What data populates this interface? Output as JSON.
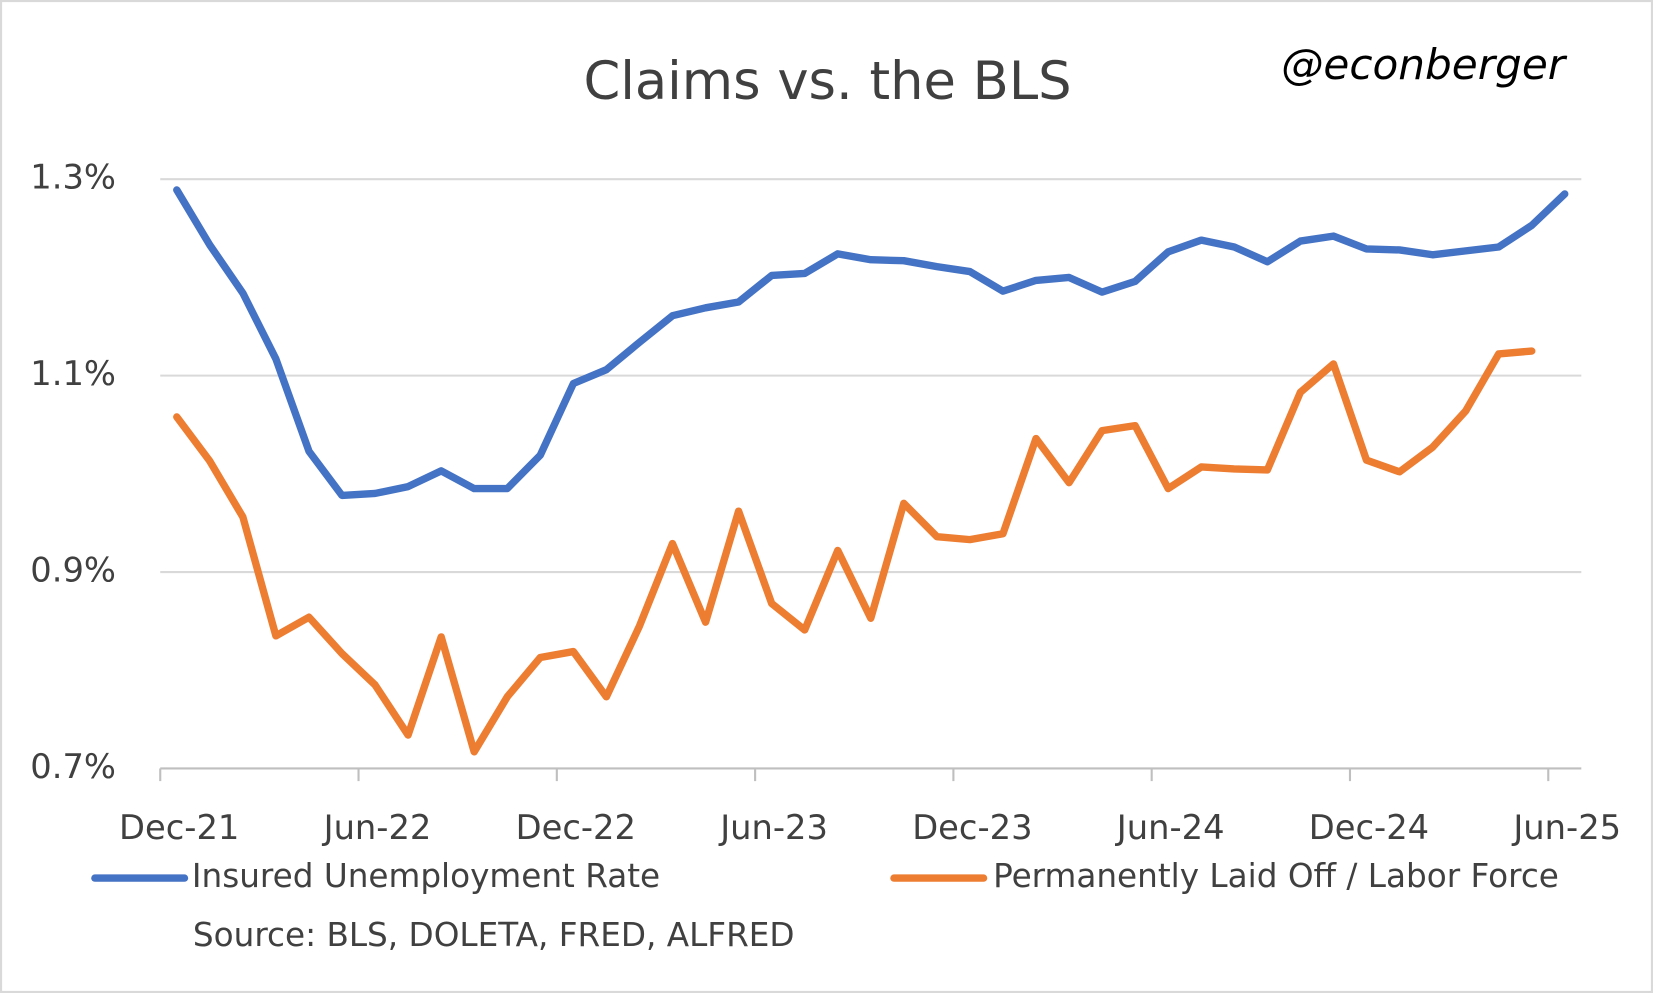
{
  "chart_data": {
    "type": "line",
    "title": "Claims vs. the BLS",
    "handle": "@econberger",
    "source": "Source: BLS, DOLETA, FRED, ALFRED",
    "categories": [
      "Dec-21",
      null,
      null,
      null,
      null,
      null,
      "Jun-22",
      null,
      null,
      null,
      null,
      null,
      "Dec-22",
      null,
      null,
      null,
      null,
      null,
      "Jun-23",
      null,
      null,
      null,
      null,
      null,
      "Dec-23",
      null,
      null,
      null,
      null,
      null,
      "Jun-24",
      null,
      null,
      null,
      null,
      null,
      "Dec-24",
      null,
      null,
      null,
      null,
      null,
      "Jun-25"
    ],
    "series": [
      {
        "name": "Insured Unemployment Rate",
        "color": "#4472c4",
        "values": [
          1.289,
          1.233,
          1.184,
          1.117,
          1.023,
          0.978,
          0.98,
          0.987,
          1.003,
          0.985,
          0.985,
          1.019,
          1.092,
          1.106,
          1.134,
          1.161,
          1.169,
          1.175,
          1.202,
          1.204,
          1.224,
          1.218,
          1.217,
          1.211,
          1.206,
          1.186,
          1.197,
          1.2,
          1.185,
          1.196,
          1.226,
          1.238,
          1.231,
          1.216,
          1.237,
          1.242,
          1.229,
          1.228,
          1.223,
          1.227,
          1.231,
          1.253,
          1.285
        ]
      },
      {
        "name": "Permanently Laid Off / Labor Force",
        "color": "#ed7d31",
        "values": [
          1.058,
          1.013,
          0.956,
          0.835,
          0.854,
          0.817,
          0.785,
          0.734,
          0.834,
          0.717,
          0.773,
          0.813,
          0.819,
          0.773,
          0.845,
          0.929,
          0.849,
          0.962,
          0.868,
          0.841,
          0.922,
          0.853,
          0.97,
          0.936,
          0.933,
          0.939,
          1.036,
          0.991,
          1.044,
          1.049,
          0.985,
          1.007,
          1.005,
          1.004,
          1.083,
          1.112,
          1.014,
          1.002,
          1.027,
          1.064,
          1.122,
          1.125,
          null
        ]
      }
    ],
    "ylim": [
      0.7,
      1.3
    ],
    "yticks": [
      {
        "value": 0.7,
        "label": "0.7%"
      },
      {
        "value": 0.9,
        "label": "0.9%"
      },
      {
        "value": 1.1,
        "label": "1.1%"
      },
      {
        "value": 1.3,
        "label": "1.3%"
      }
    ],
    "grid": true
  }
}
